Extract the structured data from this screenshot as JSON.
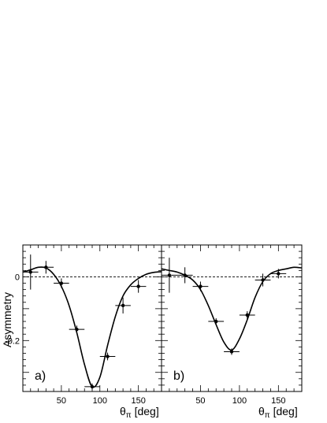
{
  "chart_data": [
    {
      "type": "scatter",
      "panel": "a)",
      "xlabel": "θ_π [deg]",
      "ylabel": "Asymmetry",
      "xlim": [
        0,
        180
      ],
      "ylim": [
        -0.36,
        0.1
      ],
      "xticks": [
        50,
        100,
        150
      ],
      "yticks": [
        0,
        -0.2
      ],
      "ytick_labels": [
        "0",
        "-0.2"
      ],
      "reference_line": 0,
      "points": [
        {
          "x": 10,
          "y": 0.015,
          "xerr": 10,
          "yerr": 0.055
        },
        {
          "x": 30,
          "y": 0.03,
          "xerr": 10,
          "yerr": 0.02
        },
        {
          "x": 50,
          "y": -0.02,
          "xerr": 10,
          "yerr": 0.015
        },
        {
          "x": 70,
          "y": -0.165,
          "xerr": 10,
          "yerr": 0.012
        },
        {
          "x": 90,
          "y": -0.345,
          "xerr": 10,
          "yerr": 0.01
        },
        {
          "x": 110,
          "y": -0.25,
          "xerr": 10,
          "yerr": 0.012
        },
        {
          "x": 130,
          "y": -0.09,
          "xerr": 10,
          "yerr": 0.025
        },
        {
          "x": 150,
          "y": -0.03,
          "xerr": 10,
          "yerr": 0.02
        }
      ],
      "fit_curve": [
        [
          0,
          0.015
        ],
        [
          10,
          0.022
        ],
        [
          20,
          0.03
        ],
        [
          30,
          0.028
        ],
        [
          40,
          0.008
        ],
        [
          50,
          -0.03
        ],
        [
          60,
          -0.09
        ],
        [
          70,
          -0.175
        ],
        [
          80,
          -0.275
        ],
        [
          90,
          -0.345
        ],
        [
          100,
          -0.315
        ],
        [
          110,
          -0.215
        ],
        [
          120,
          -0.125
        ],
        [
          130,
          -0.06
        ],
        [
          140,
          -0.025
        ],
        [
          150,
          -0.005
        ],
        [
          160,
          0.008
        ],
        [
          170,
          0.014
        ],
        [
          180,
          0.016
        ]
      ]
    },
    {
      "type": "scatter",
      "panel": "b)",
      "xlabel": "θ_π [deg]",
      "ylabel": "Asymmetry",
      "xlim": [
        0,
        180
      ],
      "ylim": [
        -0.36,
        0.1
      ],
      "xticks": [
        50,
        100,
        150
      ],
      "reference_line": 0,
      "points": [
        {
          "x": 10,
          "y": 0.005,
          "xerr": 10,
          "yerr": 0.055
        },
        {
          "x": 30,
          "y": 0.005,
          "xerr": 10,
          "yerr": 0.025
        },
        {
          "x": 50,
          "y": -0.03,
          "xerr": 10,
          "yerr": 0.015
        },
        {
          "x": 70,
          "y": -0.14,
          "xerr": 10,
          "yerr": 0.01
        },
        {
          "x": 90,
          "y": -0.235,
          "xerr": 10,
          "yerr": 0.01
        },
        {
          "x": 110,
          "y": -0.12,
          "xerr": 10,
          "yerr": 0.012
        },
        {
          "x": 130,
          "y": -0.01,
          "xerr": 10,
          "yerr": 0.02
        },
        {
          "x": 150,
          "y": 0.01,
          "xerr": 10,
          "yerr": 0.015
        }
      ],
      "fit_curve": [
        [
          0,
          0.025
        ],
        [
          10,
          0.02
        ],
        [
          20,
          0.015
        ],
        [
          30,
          0.005
        ],
        [
          40,
          -0.01
        ],
        [
          50,
          -0.04
        ],
        [
          60,
          -0.09
        ],
        [
          70,
          -0.15
        ],
        [
          80,
          -0.205
        ],
        [
          90,
          -0.23
        ],
        [
          100,
          -0.195
        ],
        [
          110,
          -0.135
        ],
        [
          120,
          -0.065
        ],
        [
          130,
          -0.015
        ],
        [
          140,
          0.01
        ],
        [
          150,
          0.02
        ],
        [
          160,
          0.025
        ],
        [
          170,
          0.03
        ],
        [
          180,
          0.028
        ]
      ]
    }
  ]
}
